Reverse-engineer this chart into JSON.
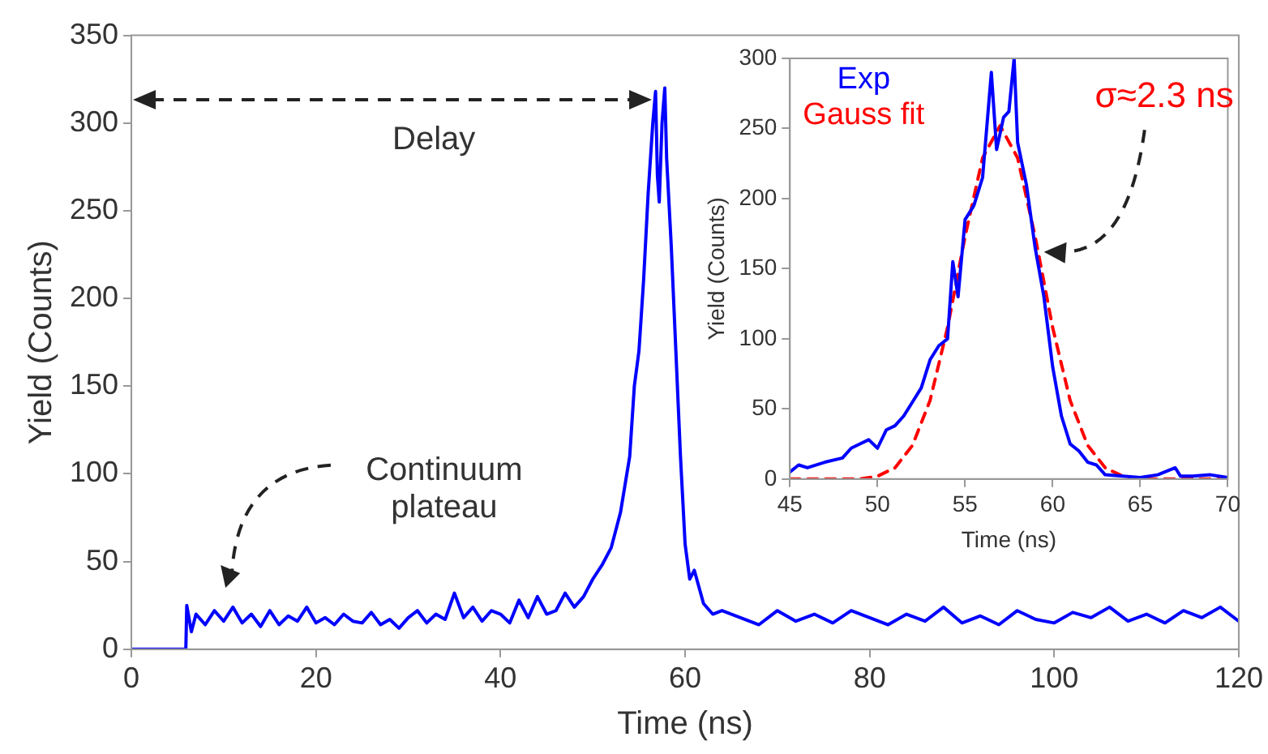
{
  "chart_data": [
    {
      "type": "line",
      "xlabel": "Time (ns)",
      "ylabel": "Yield (Counts)",
      "xlim": [
        0,
        120
      ],
      "xticks": [
        0,
        20,
        40,
        60,
        80,
        100,
        120
      ],
      "ylim": [
        0,
        350
      ],
      "yticks": [
        0,
        50,
        100,
        150,
        200,
        250,
        300,
        350
      ],
      "grid": false,
      "legend": false,
      "marker": "none",
      "annotations": [
        "Delay",
        "Continuum plateau"
      ],
      "series": [
        {
          "color": "#0000ff",
          "x": [
            0,
            5.9,
            6,
            6.5,
            7,
            8,
            9,
            10,
            11,
            12,
            13,
            14,
            15,
            16,
            17,
            18,
            19,
            20,
            21,
            22,
            23,
            24,
            25,
            26,
            27,
            28,
            29,
            30,
            31,
            32,
            33,
            34,
            35,
            36,
            37,
            38,
            39,
            40,
            41,
            42,
            43,
            44,
            45,
            46,
            47,
            48,
            49,
            50,
            51,
            52,
            53,
            54,
            54.5,
            55,
            55.5,
            56,
            56.5,
            56.8,
            57,
            57.2,
            57.5,
            57.8,
            58,
            58.5,
            59,
            59.5,
            60,
            60.5,
            61,
            62,
            63,
            64,
            66,
            68,
            70,
            72,
            74,
            76,
            78,
            80,
            82,
            84,
            86,
            88,
            90,
            92,
            94,
            96,
            98,
            100,
            102,
            104,
            106,
            108,
            110,
            112,
            114,
            116,
            118,
            120
          ],
          "values": [
            0,
            0,
            25,
            10,
            20,
            14,
            22,
            16,
            24,
            15,
            20,
            13,
            22,
            14,
            19,
            16,
            24,
            15,
            18,
            14,
            20,
            16,
            15,
            21,
            14,
            17,
            12,
            18,
            22,
            15,
            20,
            17,
            32,
            18,
            24,
            16,
            22,
            20,
            15,
            28,
            18,
            30,
            20,
            22,
            32,
            24,
            30,
            40,
            48,
            58,
            78,
            110,
            150,
            170,
            210,
            260,
            300,
            318,
            270,
            255,
            300,
            320,
            280,
            230,
            170,
            110,
            60,
            40,
            45,
            26,
            20,
            22,
            18,
            14,
            22,
            16,
            20,
            15,
            22,
            18,
            14,
            20,
            16,
            24,
            15,
            19,
            14,
            22,
            17,
            15,
            21,
            18,
            24,
            16,
            20,
            15,
            22,
            18,
            24,
            16
          ]
        }
      ]
    },
    {
      "type": "line",
      "xlabel": "Time (ns)",
      "ylabel": "Yield (Counts)",
      "xlim": [
        45,
        70
      ],
      "xticks": [
        45,
        50,
        55,
        60,
        65,
        70
      ],
      "ylim": [
        0,
        300
      ],
      "yticks": [
        0,
        50,
        100,
        150,
        200,
        250,
        300
      ],
      "grid": false,
      "legend": "top left",
      "marker": "none",
      "annotations": [
        "σ≈2.3 ns"
      ],
      "series": [
        {
          "name": "Exp",
          "color": "#0000ff",
          "line_style": "solid",
          "x": [
            45,
            45.5,
            46,
            47,
            48,
            48.5,
            49,
            49.5,
            50,
            50.5,
            51,
            51.5,
            52,
            52.5,
            53,
            53.5,
            54,
            54.3,
            54.6,
            55,
            55.5,
            56,
            56.5,
            56.8,
            57.2,
            57.5,
            57.8,
            58,
            58.5,
            59,
            59.5,
            60,
            60.5,
            61,
            61.5,
            62,
            62.5,
            63,
            64,
            65,
            66,
            67,
            67.3,
            68,
            69,
            70
          ],
          "values": [
            5,
            10,
            8,
            12,
            15,
            22,
            25,
            28,
            22,
            35,
            38,
            45,
            55,
            65,
            85,
            95,
            100,
            155,
            130,
            185,
            195,
            215,
            290,
            235,
            258,
            262,
            300,
            240,
            210,
            165,
            130,
            80,
            45,
            25,
            20,
            12,
            10,
            3,
            2,
            1,
            3,
            8,
            2,
            2,
            3,
            1
          ]
        },
        {
          "name": "Gauss fit",
          "color": "#ff0000",
          "line_style": "dashed",
          "x": [
            45,
            46,
            47,
            48,
            49,
            50,
            51,
            52,
            53,
            54,
            55,
            56,
            57,
            58,
            59,
            60,
            61,
            62,
            63,
            64,
            65,
            66,
            67,
            68,
            69,
            70
          ],
          "values": [
            0,
            0,
            0,
            0,
            0,
            2,
            8,
            24,
            56,
            108,
            173,
            229,
            252,
            229,
            173,
            108,
            56,
            24,
            8,
            2,
            0,
            0,
            0,
            0,
            0,
            0
          ]
        }
      ]
    }
  ]
}
